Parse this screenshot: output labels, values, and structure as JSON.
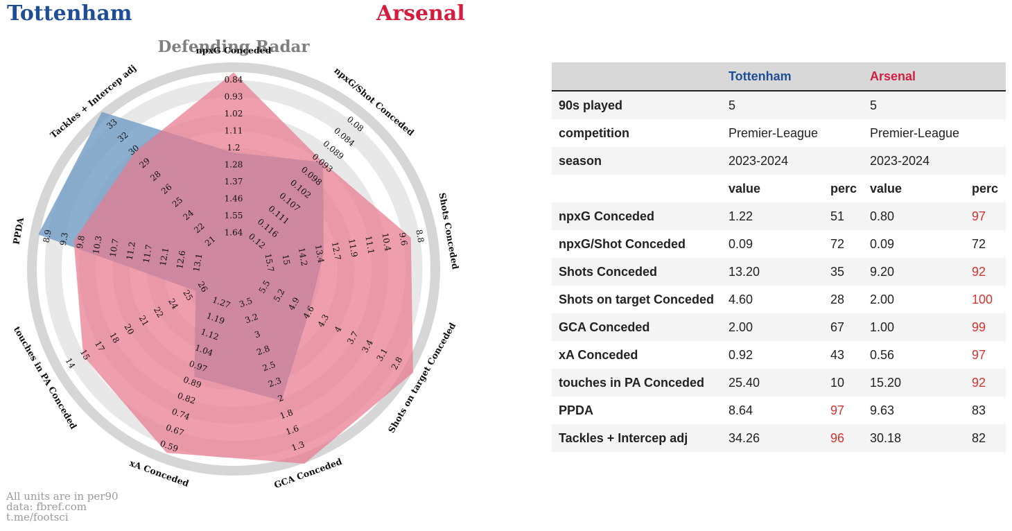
{
  "header": {
    "team_left": "Tottenham",
    "team_right": "Arsenal"
  },
  "colors": {
    "tottenham": "#1f4e96",
    "arsenal": "#d31d3f",
    "radar_left": "#6f9bc4",
    "radar_right": "#e8788e",
    "highlight": "#d93030"
  },
  "chart_data": {
    "type": "radar",
    "title": "Defending Radar",
    "axes": [
      {
        "label": "npxG Conceded",
        "ticks": [
          "0.84",
          "0.93",
          "1.02",
          "1.11",
          "1.2",
          "1.28",
          "1.37",
          "1.46",
          "1.55",
          "1.64"
        ],
        "min": 1.64,
        "max": 0.84
      },
      {
        "label": "npxG/Shot Conceded",
        "ticks": [
          "0.08",
          "0.084",
          "0.089",
          "0.093",
          "0.098",
          "0.102",
          "0.107",
          "0.111",
          "0.116",
          "0.12"
        ],
        "min": 0.12,
        "max": 0.08
      },
      {
        "label": "Shots Conceded",
        "ticks": [
          "8.8",
          "9.6",
          "10.4",
          "11.1",
          "11.9",
          "12.7",
          "13.4",
          "14.2",
          "15",
          "15.7"
        ],
        "min": 15.7,
        "max": 8.8
      },
      {
        "label": "Shots on target Conceded",
        "ticks": [
          "2.8",
          "3.1",
          "3.4",
          "3.7",
          "4",
          "4.3",
          "4.6",
          "4.9",
          "5.2",
          "5.5"
        ],
        "min": 5.5,
        "max": 2.8
      },
      {
        "label": "GCA Conceded",
        "ticks": [
          "1.3",
          "1.6",
          "1.8",
          "2",
          "2.3",
          "2.5",
          "2.8",
          "3",
          "3.2",
          "3.5"
        ],
        "min": 3.5,
        "max": 1.3
      },
      {
        "label": "xA Conceded",
        "ticks": [
          "0.59",
          "0.67",
          "0.74",
          "0.82",
          "0.89",
          "0.97",
          "1.04",
          "1.12",
          "1.19",
          "1.27"
        ],
        "min": 1.27,
        "max": 0.59
      },
      {
        "label": "touches in PA Conceded",
        "ticks": [
          "14",
          "15",
          "17",
          "18",
          "20",
          "21",
          "22",
          "24",
          "25",
          "26"
        ],
        "min": 26,
        "max": 14
      },
      {
        "label": "PPDA",
        "ticks": [
          "8.9",
          "9.3",
          "9.8",
          "10.3",
          "10.7",
          "11.2",
          "11.7",
          "12.1",
          "12.6",
          "13.1"
        ],
        "min": 13.1,
        "max": 8.9
      },
      {
        "label": "Tackles + Intercep adj",
        "ticks": [
          "33",
          "32",
          "30",
          "29",
          "28",
          "26",
          "25",
          "24",
          "22",
          "21"
        ],
        "min": 21,
        "max": 33
      }
    ],
    "series": [
      {
        "name": "Tottenham",
        "values": [
          1.22,
          0.093,
          13.2,
          4.6,
          2.0,
          0.92,
          25.4,
          8.64,
          34.26
        ]
      },
      {
        "name": "Arsenal",
        "values": [
          0.8,
          0.093,
          9.2,
          2.0,
          1.0,
          0.56,
          15.2,
          9.63,
          30.18
        ]
      }
    ]
  },
  "footer": {
    "line1": "All units are in per90",
    "line2": "data: fbref.com",
    "line3": "t.me/footsci"
  },
  "table": {
    "header": {
      "blank": "",
      "team_left": "Tottenham",
      "team_right": "Arsenal"
    },
    "info_rows": [
      {
        "label": "90s played",
        "left": "5",
        "right": "5"
      },
      {
        "label": "competition",
        "left": "Premier-League",
        "right": "Premier-League"
      },
      {
        "label": "season",
        "left": "2023-2024",
        "right": "2023-2024"
      }
    ],
    "subheader": {
      "value": "value",
      "perc": "perc"
    },
    "stat_rows": [
      {
        "label": "npxG Conceded",
        "l_val": "1.22",
        "l_perc": "51",
        "r_val": "0.80",
        "r_perc": "97"
      },
      {
        "label": "npxG/Shot Conceded",
        "l_val": "0.09",
        "l_perc": "72",
        "r_val": "0.09",
        "r_perc": "72"
      },
      {
        "label": "Shots Conceded",
        "l_val": "13.20",
        "l_perc": "35",
        "r_val": "9.20",
        "r_perc": "92"
      },
      {
        "label": "Shots on target Conceded",
        "l_val": "4.60",
        "l_perc": "28",
        "r_val": "2.00",
        "r_perc": "100"
      },
      {
        "label": "GCA Conceded",
        "l_val": "2.00",
        "l_perc": "67",
        "r_val": "1.00",
        "r_perc": "99"
      },
      {
        "label": "xA Conceded",
        "l_val": "0.92",
        "l_perc": "43",
        "r_val": "0.56",
        "r_perc": "97"
      },
      {
        "label": "touches in PA Conceded",
        "l_val": "25.40",
        "l_perc": "10",
        "r_val": "15.20",
        "r_perc": "92"
      },
      {
        "label": "PPDA",
        "l_val": "8.64",
        "l_perc": "97",
        "r_val": "9.63",
        "r_perc": "83"
      },
      {
        "label": "Tackles + Intercep adj",
        "l_val": "34.26",
        "l_perc": "96",
        "r_val": "30.18",
        "r_perc": "82"
      }
    ]
  }
}
